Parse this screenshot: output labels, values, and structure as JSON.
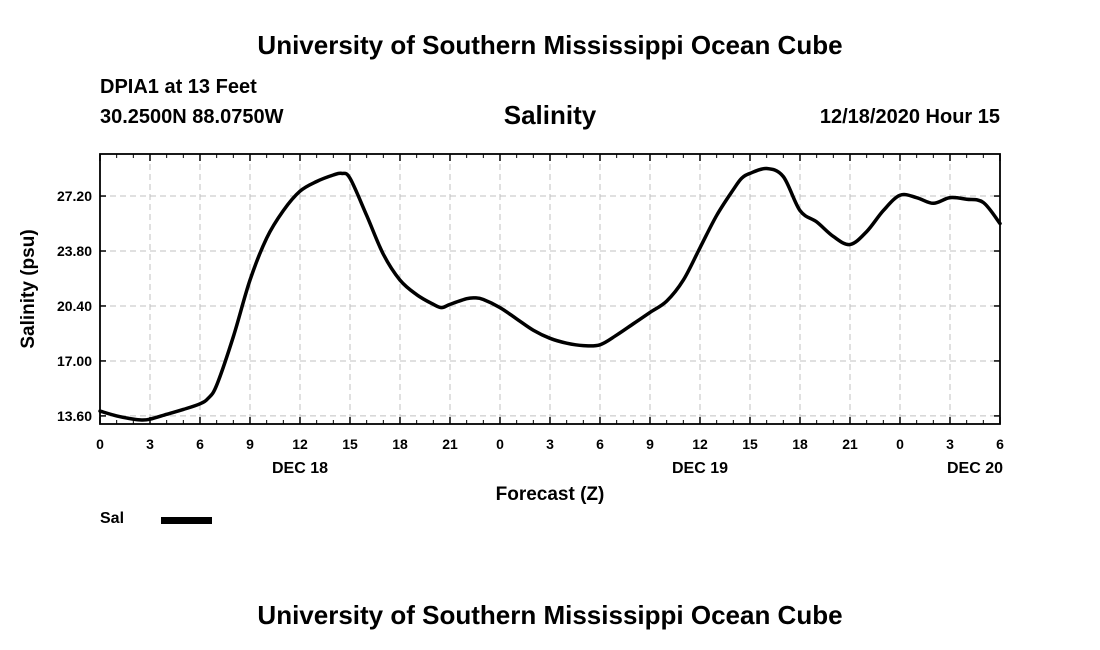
{
  "header": {
    "title": "University of Southern Mississippi Ocean Cube",
    "station": "DPIA1 at 13 Feet",
    "coords": "30.2500N 88.0750W",
    "variable": "Salinity",
    "datetime": "12/18/2020 Hour 15"
  },
  "footer": {
    "title": "University of Southern Mississippi Ocean Cube"
  },
  "colors": {
    "line": "#000000",
    "grid": "#c0c0c0",
    "background": "#ffffff"
  },
  "chart_data": {
    "type": "line",
    "title": "Salinity",
    "xlabel": "Forecast (Z)",
    "ylabel": "Salinity (psu)",
    "xlim": [
      0,
      54
    ],
    "ylim": [
      13.1,
      29.8
    ],
    "yticks": [
      13.6,
      17.0,
      20.4,
      23.8,
      27.2
    ],
    "ytick_labels": [
      "13.60",
      "17.00",
      "20.40",
      "23.80",
      "27.20"
    ],
    "xticks": [
      0,
      3,
      6,
      9,
      12,
      15,
      18,
      21,
      24,
      27,
      30,
      33,
      36,
      39,
      42,
      45,
      48,
      51,
      54
    ],
    "xtick_labels": [
      "0",
      "3",
      "6",
      "9",
      "12",
      "15",
      "18",
      "21",
      "0",
      "3",
      "6",
      "9",
      "12",
      "15",
      "18",
      "21",
      "0",
      "3",
      "6"
    ],
    "day_labels": [
      {
        "x": 12,
        "label": "DEC 18"
      },
      {
        "x": 36,
        "label": "DEC 19"
      },
      {
        "x": 52.5,
        "label": "DEC 20"
      }
    ],
    "grid": true,
    "legend": {
      "label": "Sal",
      "position": "bottom-left"
    },
    "series": [
      {
        "name": "Sal",
        "x": [
          0,
          1,
          2,
          2.5,
          3,
          4,
          5,
          6,
          6.5,
          7,
          8,
          9,
          10,
          11,
          12,
          13,
          14,
          14.5,
          15,
          16,
          17,
          18,
          19,
          20,
          20.5,
          21,
          22,
          22.5,
          23,
          24,
          25,
          26,
          27,
          28,
          29,
          30,
          31,
          32,
          33,
          34,
          35,
          36,
          37,
          38,
          38.5,
          39,
          40,
          41,
          42,
          43,
          44,
          45,
          46,
          47,
          48,
          49,
          50,
          51,
          52,
          53,
          54
        ],
        "values": [
          13.9,
          13.6,
          13.4,
          13.35,
          13.4,
          13.7,
          14.0,
          14.35,
          14.7,
          15.5,
          18.5,
          22.0,
          24.6,
          26.3,
          27.5,
          28.1,
          28.5,
          28.6,
          28.3,
          26.0,
          23.6,
          22.0,
          21.1,
          20.5,
          20.3,
          20.5,
          20.85,
          20.9,
          20.8,
          20.3,
          19.6,
          18.9,
          18.4,
          18.1,
          17.95,
          18.0,
          18.6,
          19.3,
          20.0,
          20.7,
          22.0,
          24.0,
          26.0,
          27.6,
          28.3,
          28.6,
          28.9,
          28.4,
          26.3,
          25.6,
          24.7,
          24.2,
          25.0,
          26.3,
          27.25,
          27.1,
          26.75,
          27.1,
          27.0,
          26.8,
          25.5
        ]
      }
    ]
  }
}
